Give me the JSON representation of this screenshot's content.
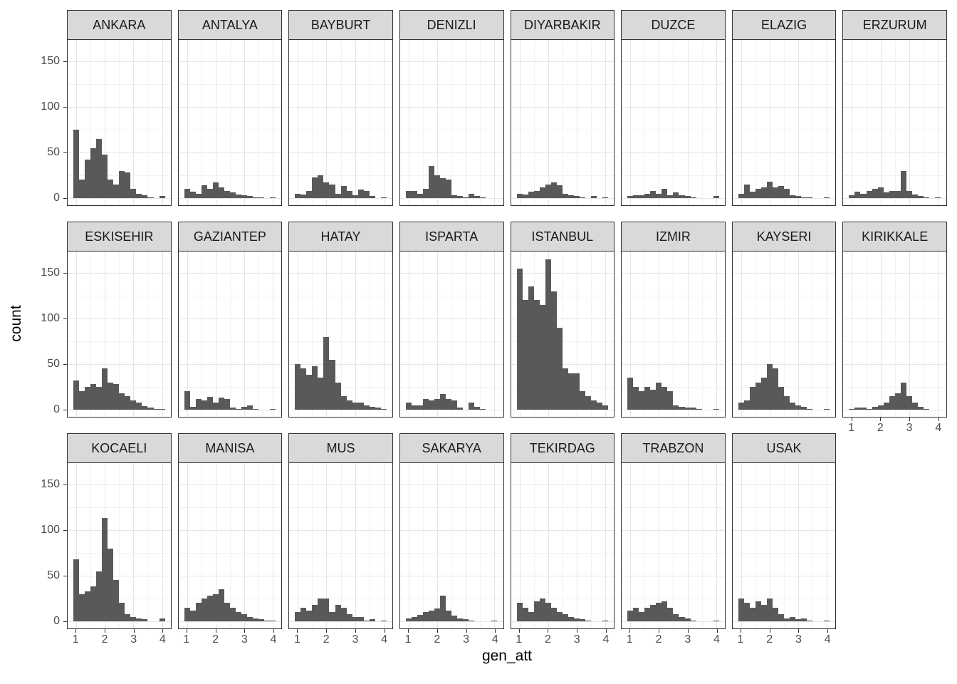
{
  "chart_data": {
    "type": "bar",
    "subtype": "faceted-histogram",
    "title": "",
    "xlabel": "gen_att",
    "ylabel": "count",
    "x_ticks": [
      1,
      2,
      3,
      4
    ],
    "y_ticks": [
      0,
      50,
      100,
      150
    ],
    "y_minor": [
      25,
      75,
      125
    ],
    "x_minor": [
      1.5,
      2.5,
      3.5
    ],
    "xlim": [
      0.7,
      4.3
    ],
    "ylim": [
      0,
      178
    ],
    "bin_start": 0.9,
    "bin_width": 0.2,
    "ncol": 8,
    "grid": true,
    "legend": "none",
    "colors": {
      "bar": "#595959",
      "strip_bg": "#d9d9d9",
      "panel_border": "#333333",
      "grid_major": "#e5e5e5",
      "grid_minor": "#f2f2f2",
      "tick_text": "#4d4d4d",
      "title_text": "#000000"
    },
    "facets": [
      {
        "label": "ANKARA",
        "counts": [
          75,
          20,
          42,
          55,
          65,
          48,
          20,
          15,
          30,
          28,
          10,
          5,
          3,
          1,
          0,
          2
        ]
      },
      {
        "label": "ANTALYA",
        "counts": [
          10,
          7,
          5,
          14,
          10,
          17,
          12,
          8,
          6,
          4,
          3,
          2,
          1,
          1,
          0,
          1
        ]
      },
      {
        "label": "BAYBURT",
        "counts": [
          5,
          4,
          8,
          23,
          25,
          17,
          15,
          5,
          13,
          8,
          3,
          9,
          8,
          2,
          0,
          1
        ]
      },
      {
        "label": "DENIZLI",
        "counts": [
          8,
          8,
          5,
          10,
          35,
          25,
          22,
          20,
          3,
          2,
          1,
          5,
          2,
          1,
          0,
          0
        ]
      },
      {
        "label": "DIYARBAKIR",
        "counts": [
          5,
          4,
          7,
          8,
          12,
          15,
          17,
          14,
          5,
          3,
          2,
          1,
          0,
          2,
          0,
          1
        ]
      },
      {
        "label": "DUZCE",
        "counts": [
          2,
          3,
          3,
          5,
          8,
          5,
          10,
          3,
          6,
          3,
          2,
          1,
          0,
          0,
          0,
          2
        ]
      },
      {
        "label": "ELAZIG",
        "counts": [
          5,
          15,
          7,
          10,
          12,
          18,
          12,
          13,
          10,
          3,
          2,
          1,
          1,
          0,
          0,
          1
        ]
      },
      {
        "label": "ERZURUM",
        "counts": [
          3,
          7,
          5,
          8,
          10,
          12,
          6,
          8,
          8,
          30,
          8,
          4,
          2,
          1,
          0,
          1
        ]
      },
      {
        "label": "ESKISEHIR",
        "counts": [
          32,
          20,
          25,
          28,
          25,
          45,
          30,
          28,
          18,
          15,
          10,
          8,
          4,
          2,
          1,
          1
        ]
      },
      {
        "label": "GAZIANTEP",
        "counts": [
          20,
          3,
          12,
          10,
          14,
          8,
          13,
          12,
          2,
          1,
          3,
          5,
          1,
          0,
          0,
          1
        ]
      },
      {
        "label": "HATAY",
        "counts": [
          50,
          45,
          38,
          48,
          35,
          80,
          55,
          30,
          15,
          10,
          8,
          8,
          5,
          3,
          2,
          1
        ]
      },
      {
        "label": "ISPARTA",
        "counts": [
          8,
          5,
          5,
          12,
          10,
          12,
          17,
          12,
          10,
          2,
          0,
          8,
          3,
          1,
          0,
          0
        ]
      },
      {
        "label": "ISTANBUL",
        "counts": [
          155,
          120,
          135,
          120,
          115,
          165,
          130,
          90,
          45,
          40,
          40,
          20,
          15,
          10,
          8,
          5
        ]
      },
      {
        "label": "IZMIR",
        "counts": [
          35,
          25,
          20,
          25,
          22,
          30,
          25,
          20,
          5,
          3,
          2,
          2,
          1,
          0,
          0,
          1
        ]
      },
      {
        "label": "KAYSERI",
        "counts": [
          8,
          10,
          25,
          30,
          35,
          50,
          45,
          25,
          15,
          8,
          5,
          3,
          1,
          0,
          0,
          1
        ]
      },
      {
        "label": "KIRIKKALE",
        "counts": [
          1,
          2,
          2,
          1,
          3,
          5,
          8,
          15,
          18,
          30,
          15,
          8,
          3,
          1,
          0,
          0
        ]
      },
      {
        "label": "KOCAELI",
        "counts": [
          68,
          30,
          33,
          38,
          55,
          113,
          80,
          45,
          20,
          8,
          5,
          3,
          2,
          0,
          0,
          3
        ]
      },
      {
        "label": "MANISA",
        "counts": [
          15,
          12,
          20,
          25,
          28,
          30,
          35,
          20,
          15,
          10,
          8,
          5,
          3,
          2,
          1,
          1
        ]
      },
      {
        "label": "MUS",
        "counts": [
          10,
          15,
          12,
          18,
          25,
          25,
          10,
          18,
          15,
          8,
          5,
          5,
          1,
          2,
          0,
          1
        ]
      },
      {
        "label": "SAKARYA",
        "counts": [
          3,
          5,
          7,
          10,
          12,
          14,
          28,
          12,
          6,
          3,
          2,
          1,
          0,
          0,
          0,
          1
        ]
      },
      {
        "label": "TEKIRDAG",
        "counts": [
          20,
          15,
          10,
          22,
          25,
          20,
          15,
          10,
          8,
          5,
          3,
          2,
          1,
          0,
          0,
          1
        ]
      },
      {
        "label": "TRABZON",
        "counts": [
          12,
          15,
          10,
          15,
          18,
          20,
          22,
          15,
          8,
          5,
          3,
          1,
          0,
          0,
          0,
          1
        ]
      },
      {
        "label": "USAK",
        "counts": [
          25,
          20,
          15,
          22,
          18,
          25,
          15,
          8,
          3,
          5,
          2,
          3,
          1,
          0,
          0,
          1
        ]
      }
    ]
  }
}
